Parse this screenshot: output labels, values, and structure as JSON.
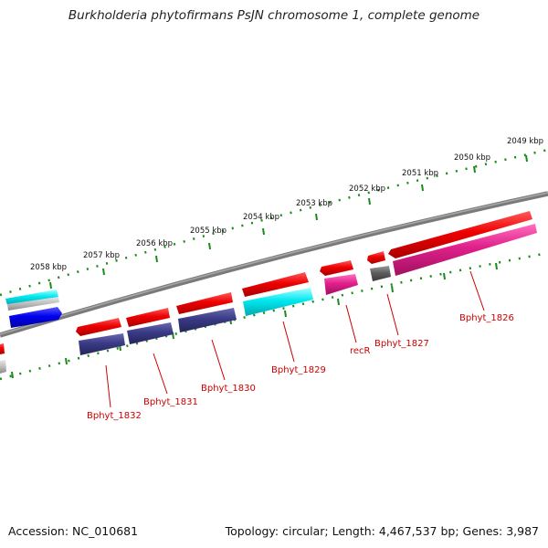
{
  "title": "Burkholderia phytofirmans PsJN chromosome 1, complete genome",
  "footer": {
    "accession": "Accession: NC_010681",
    "info": "Topology: circular; Length: 4,467,537 bp; Genes: 3,987"
  },
  "kbp_labels": [
    "2049 kbp",
    "2050 kbp",
    "2051 kbp",
    "2052 kbp",
    "2053 kbp",
    "2054 kbp",
    "2055 kbp",
    "2056 kbp",
    "2057 kbp",
    "2058 kbp"
  ],
  "gene_labels": [
    "Bphyt_1826",
    "Bphyt_1827",
    "recR",
    "Bphyt_1829",
    "Bphyt_1830",
    "Bphyt_1831",
    "Bphyt_1832"
  ],
  "colors": {
    "red_gene": "#ee0000",
    "magenta_gene": "#e0208a",
    "cyan_gene": "#00e0e8",
    "navy_gene": "#3a3a86",
    "gray_gene": "#5e5e5e",
    "blue_gene": "#0000ee",
    "backbone": "#7a7a7a",
    "ticks": "#1a8a1a",
    "label_red": "#cc0000"
  }
}
